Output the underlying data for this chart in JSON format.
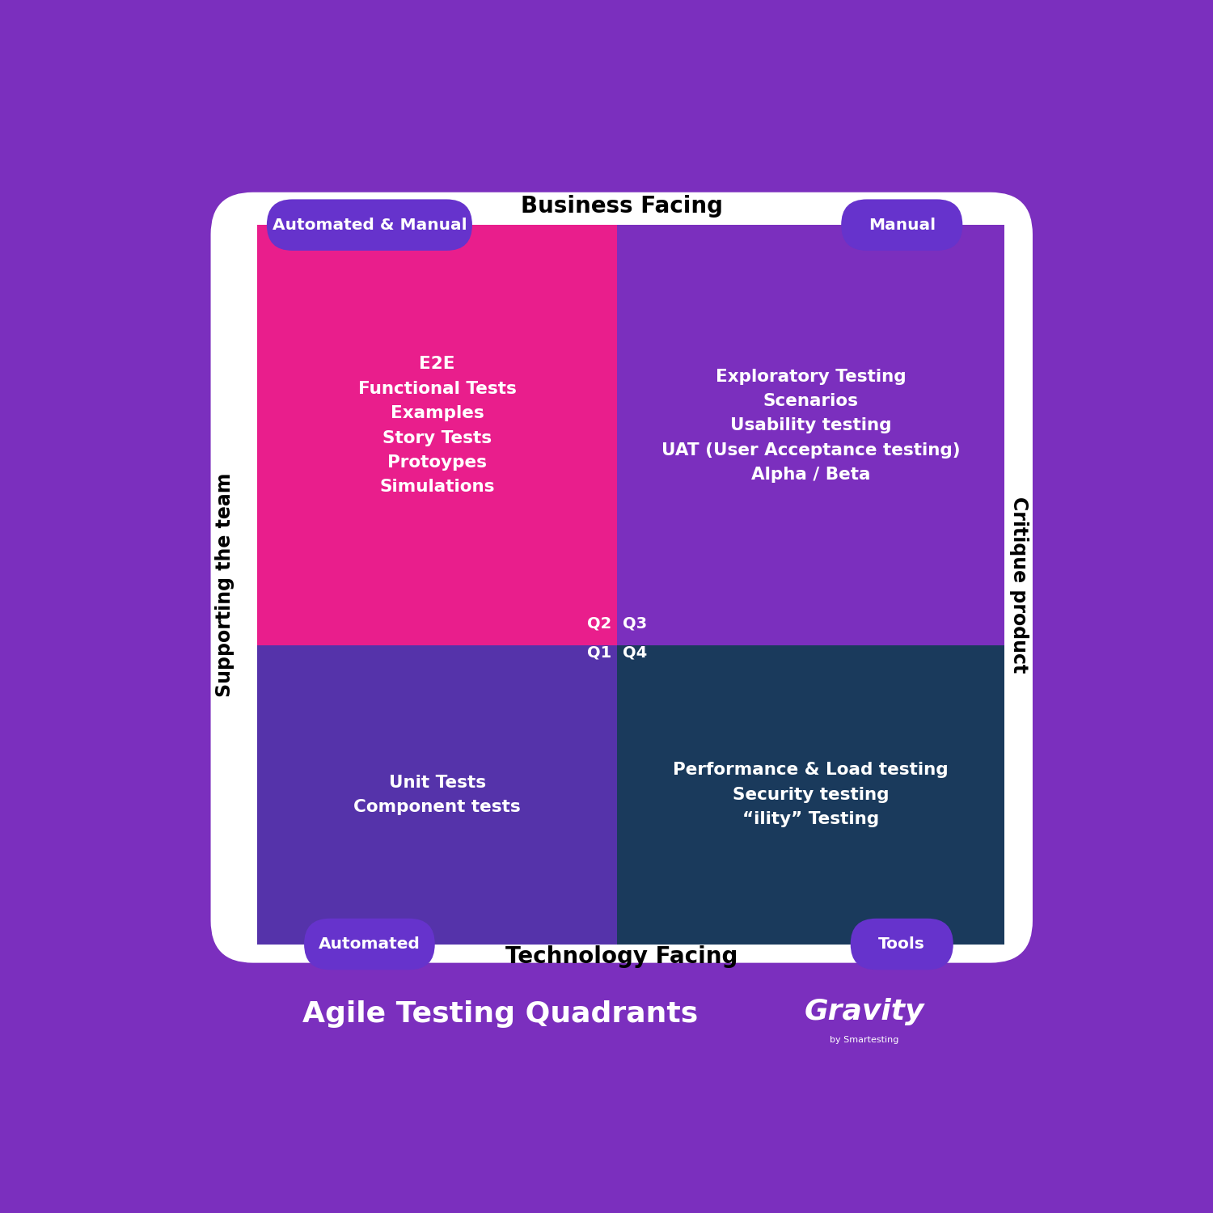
{
  "bg_color": "#7B2FBE",
  "white_panel_color": "#FFFFFF",
  "q1_color": "#5533AA",
  "q2_color": "#E91E8C",
  "q3_color": "#7B2FBE",
  "q4_color": "#1A3A5C",
  "pill_color": "#6633CC",
  "text_white": "#FFFFFF",
  "text_black": "#000000",
  "title_bottom": "Agile Testing Quadrants",
  "label_top": "Business Facing",
  "label_bottom": "Technology Facing",
  "label_left": "Supporting the team",
  "label_right": "Critique product",
  "pill_top_left": "Automated & Manual",
  "pill_top_right": "Manual",
  "pill_bot_left": "Automated",
  "pill_bot_right": "Tools",
  "q1_label": "Q1",
  "q2_label": "Q2",
  "q3_label": "Q3",
  "q4_label": "Q4",
  "q2_text": "E2E\nFunctional Tests\nExamples\nStory Tests\nProtoypes\nSimulations",
  "q3_text": "Exploratory Testing\nScenarios\nUsability testing\nUAT (User Acceptance testing)\nAlpha / Beta",
  "q1_text": "Unit Tests\nComponent tests",
  "q4_text": "Performance & Load testing\nSecurity testing\n“ility” Testing"
}
